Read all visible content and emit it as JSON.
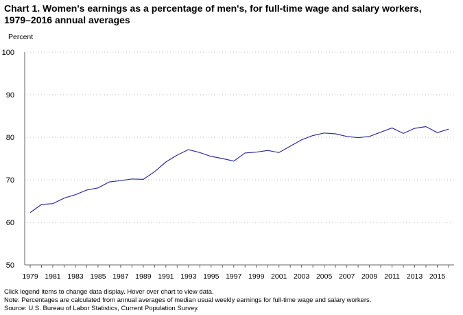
{
  "title_line1": "Chart 1. Women's earnings as a percentage of men's, for full-time wage and salary workers,",
  "title_line2": "1979–2016 annual averages",
  "notes": {
    "interaction": "Click legend items to change data display. Hover over chart to view data.",
    "note": "Note: Percentages are calculated from annual averages of median usual weekly earnings for full-time wage and salary workers.",
    "source": "Source: U.S. Bureau of Labor Statistics, Current Population Survey."
  },
  "colors": {
    "line": "#2e2ea0",
    "grid": "#bbbbbb",
    "axis": "#666666"
  },
  "chart_data": {
    "type": "line",
    "title": "Chart 1. Women's earnings as a percentage of men's, for full-time wage and salary workers, 1979–2016 annual averages",
    "ylabel": "Percent",
    "xlabel": "",
    "ylim": [
      50,
      100
    ],
    "xlim": [
      1979,
      2016
    ],
    "yticks": [
      50,
      60,
      70,
      80,
      90,
      100
    ],
    "xticks": [
      1979,
      1981,
      1983,
      1985,
      1987,
      1989,
      1991,
      1993,
      1995,
      1997,
      1999,
      2001,
      2003,
      2005,
      2007,
      2009,
      2011,
      2013,
      2015
    ],
    "grid": "horizontal-dotted",
    "x": [
      1979,
      1980,
      1981,
      1982,
      1983,
      1984,
      1985,
      1986,
      1987,
      1988,
      1989,
      1990,
      1991,
      1992,
      1993,
      1994,
      1995,
      1996,
      1997,
      1998,
      1999,
      2000,
      2001,
      2002,
      2003,
      2004,
      2005,
      2006,
      2007,
      2008,
      2009,
      2010,
      2011,
      2012,
      2013,
      2014,
      2015,
      2016
    ],
    "series": [
      {
        "values": [
          62.3,
          64.2,
          64.4,
          65.7,
          66.5,
          67.6,
          68.1,
          69.5,
          69.8,
          70.2,
          70.1,
          71.9,
          74.2,
          75.8,
          77.1,
          76.4,
          75.5,
          75.0,
          74.4,
          76.3,
          76.5,
          76.9,
          76.4,
          77.9,
          79.4,
          80.4,
          81.0,
          80.8,
          80.2,
          79.9,
          80.2,
          81.2,
          82.2,
          80.9,
          82.1,
          82.5,
          81.1,
          81.9
        ]
      }
    ]
  }
}
